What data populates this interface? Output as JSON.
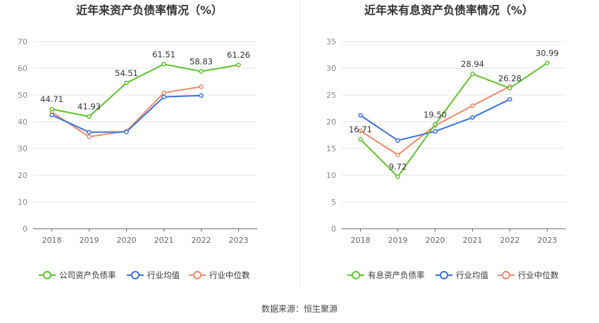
{
  "source_label": "数据来源：恒生聚源",
  "colors": {
    "green": "#5ec22a",
    "blue": "#3a73d8",
    "orange": "#f0896a"
  },
  "chart_data": [
    {
      "type": "line",
      "title": "近年来资产负债率情况（%）",
      "categories": [
        "2018",
        "2019",
        "2020",
        "2021",
        "2022",
        "2023"
      ],
      "ylim": [
        0,
        70
      ],
      "yticks": [
        0,
        10,
        20,
        30,
        40,
        50,
        60,
        70
      ],
      "series": [
        {
          "name": "公司资产负债率",
          "color": "#5ec22a",
          "values": [
            44.71,
            41.93,
            54.51,
            61.51,
            58.83,
            61.26
          ],
          "labels": [
            "44.71",
            "41.93",
            "54.51",
            "61.51",
            "58.83",
            "61.26"
          ]
        },
        {
          "name": "行业均值",
          "color": "#3a73d8",
          "values": [
            42.5,
            36.1,
            36.2,
            49.3,
            49.8,
            null
          ]
        },
        {
          "name": "行业中位数",
          "color": "#f0896a",
          "values": [
            43.6,
            34.4,
            36.5,
            50.8,
            53.1,
            null
          ]
        }
      ],
      "legend": "bottom"
    },
    {
      "type": "line",
      "title": "近年来有息资产负债率情况（%）",
      "categories": [
        "2018",
        "2019",
        "2020",
        "2021",
        "2022",
        "2023"
      ],
      "ylim": [
        0,
        35
      ],
      "yticks": [
        0,
        5,
        10,
        15,
        20,
        25,
        30,
        35
      ],
      "series": [
        {
          "name": "有息资产负债率",
          "color": "#5ec22a",
          "values": [
            16.71,
            9.72,
            19.5,
            28.94,
            26.28,
            30.99
          ],
          "labels": [
            "16.71",
            "9.72",
            "19.50",
            "28.94",
            "26.28",
            "30.99"
          ]
        },
        {
          "name": "行业均值",
          "color": "#3a73d8",
          "values": [
            21.2,
            16.5,
            18.2,
            20.8,
            24.2,
            null
          ]
        },
        {
          "name": "行业中位数",
          "color": "#f0896a",
          "values": [
            18.3,
            13.8,
            19.3,
            23.0,
            26.6,
            null
          ]
        }
      ],
      "legend": "bottom"
    }
  ]
}
